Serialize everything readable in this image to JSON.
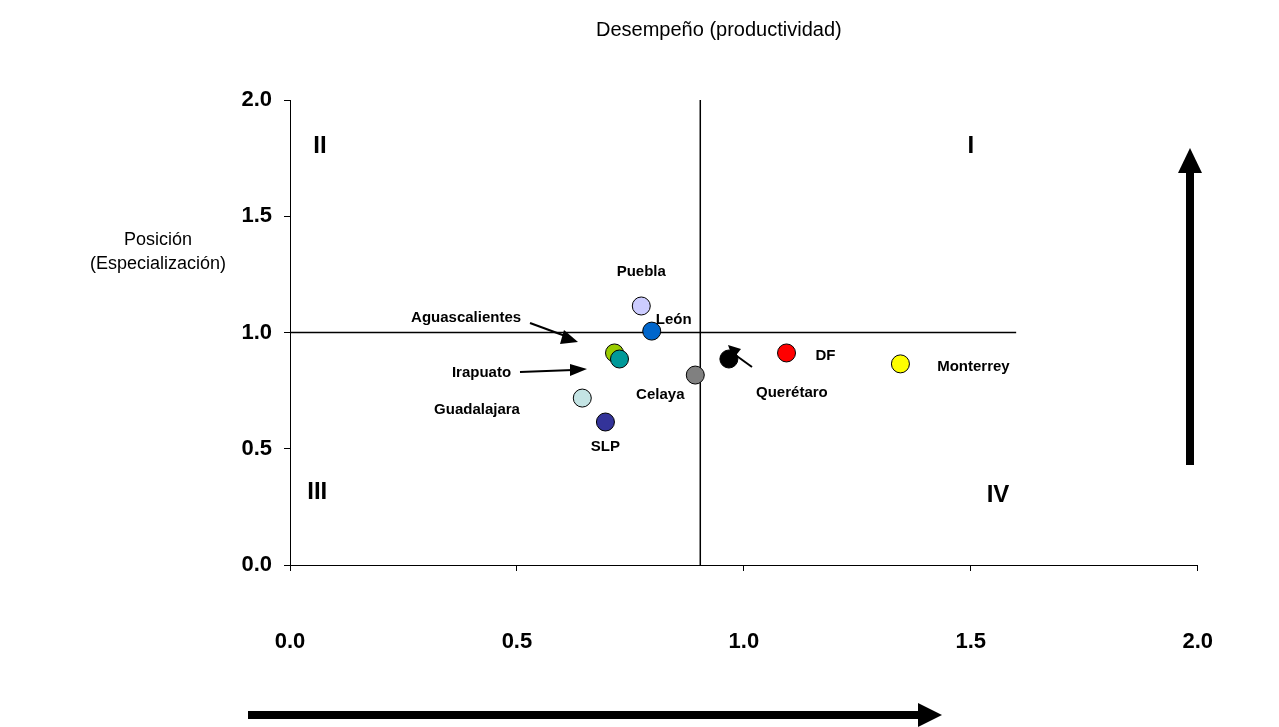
{
  "chart_data": {
    "type": "scatter",
    "title": "Desempeño (productividad)",
    "ylabel": "Posición (Especialización)",
    "x": [
      0.774,
      0.797,
      0.715,
      0.726,
      0.644,
      0.695,
      0.893,
      0.967,
      1.094,
      1.345
    ],
    "series": [
      {
        "colors": [
          "#ccccff",
          "#0066cc",
          "#99cc00",
          "#009999",
          "#c4e4e4",
          "#333399",
          "#808080",
          "#000000",
          "#ff0000",
          "#ffff00"
        ],
        "values": [
          1.114,
          1.006,
          0.912,
          0.886,
          0.718,
          0.615,
          0.817,
          0.886,
          0.912,
          0.865
        ]
      }
    ],
    "marker": "circle",
    "xlim": [
      0,
      2
    ],
    "xticks": [
      {
        "value": 0,
        "label": "0.0"
      },
      {
        "value": 0.5,
        "label": "0.5"
      },
      {
        "value": 1,
        "label": "1.0"
      },
      {
        "value": 1.5,
        "label": "1.5"
      },
      {
        "value": 2,
        "label": "2.0"
      }
    ],
    "ylim": [
      0,
      2
    ],
    "yticks": [
      {
        "value": 0,
        "label": "0.0"
      },
      {
        "value": 0.5,
        "label": "0.5"
      },
      {
        "value": 1,
        "label": "1.0"
      },
      {
        "value": 1.5,
        "label": "1.5"
      },
      {
        "value": 2,
        "label": "2.0"
      }
    ],
    "grid": false,
    "legend": false,
    "ref_lines": [
      {
        "axis": "x",
        "value": 0.904,
        "color": "#000000"
      },
      {
        "axis": "y",
        "value": 1.0,
        "color": "#000000"
      }
    ],
    "annotations": [
      {
        "text": "Puebla",
        "x": 0.774,
        "y": 1.114
      },
      {
        "text": "León",
        "x": 0.797,
        "y": 1.006
      },
      {
        "text": "SLP",
        "x": 0.695,
        "y": 0.615
      },
      {
        "text": "Celaya",
        "x": 0.893,
        "y": 0.817
      },
      {
        "text": "Querétaro",
        "x": 0.967,
        "y": 0.886
      },
      {
        "text": "DF",
        "x": 1.094,
        "y": 0.912
      },
      {
        "text": "Monterrey",
        "x": 1.345,
        "y": 0.865
      },
      "Aguascalientes",
      "Irapuato",
      "Guadalajara",
      "II",
      "I",
      "III",
      "IV"
    ]
  }
}
